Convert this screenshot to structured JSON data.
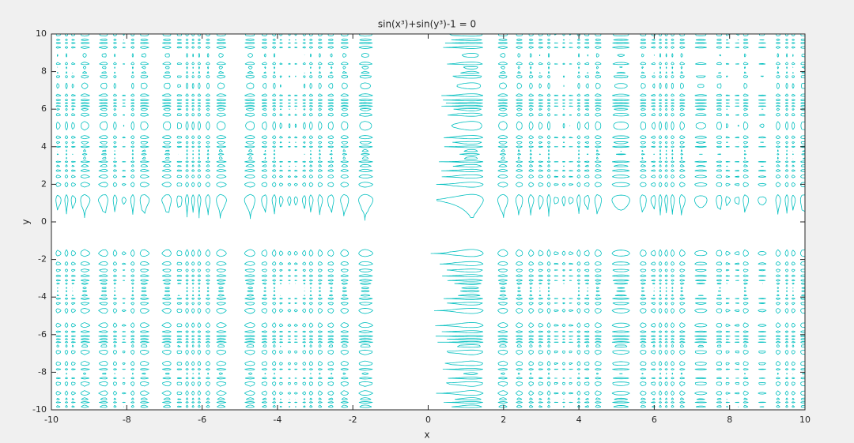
{
  "chart_data": {
    "type": "implicit",
    "title": "sin(x³)+sin(y³)-1 = 0",
    "x_label": "x",
    "y_label": "y",
    "color": "#00bfbf",
    "xlim": [
      -10,
      10
    ],
    "ylim": [
      -10,
      10
    ],
    "xticks": [
      -10,
      -8,
      -6,
      -4,
      -2,
      0,
      2,
      4,
      6,
      8,
      10
    ],
    "yticks": [
      -10,
      -8,
      -6,
      -4,
      -2,
      0,
      2,
      4,
      6,
      8,
      10
    ]
  }
}
